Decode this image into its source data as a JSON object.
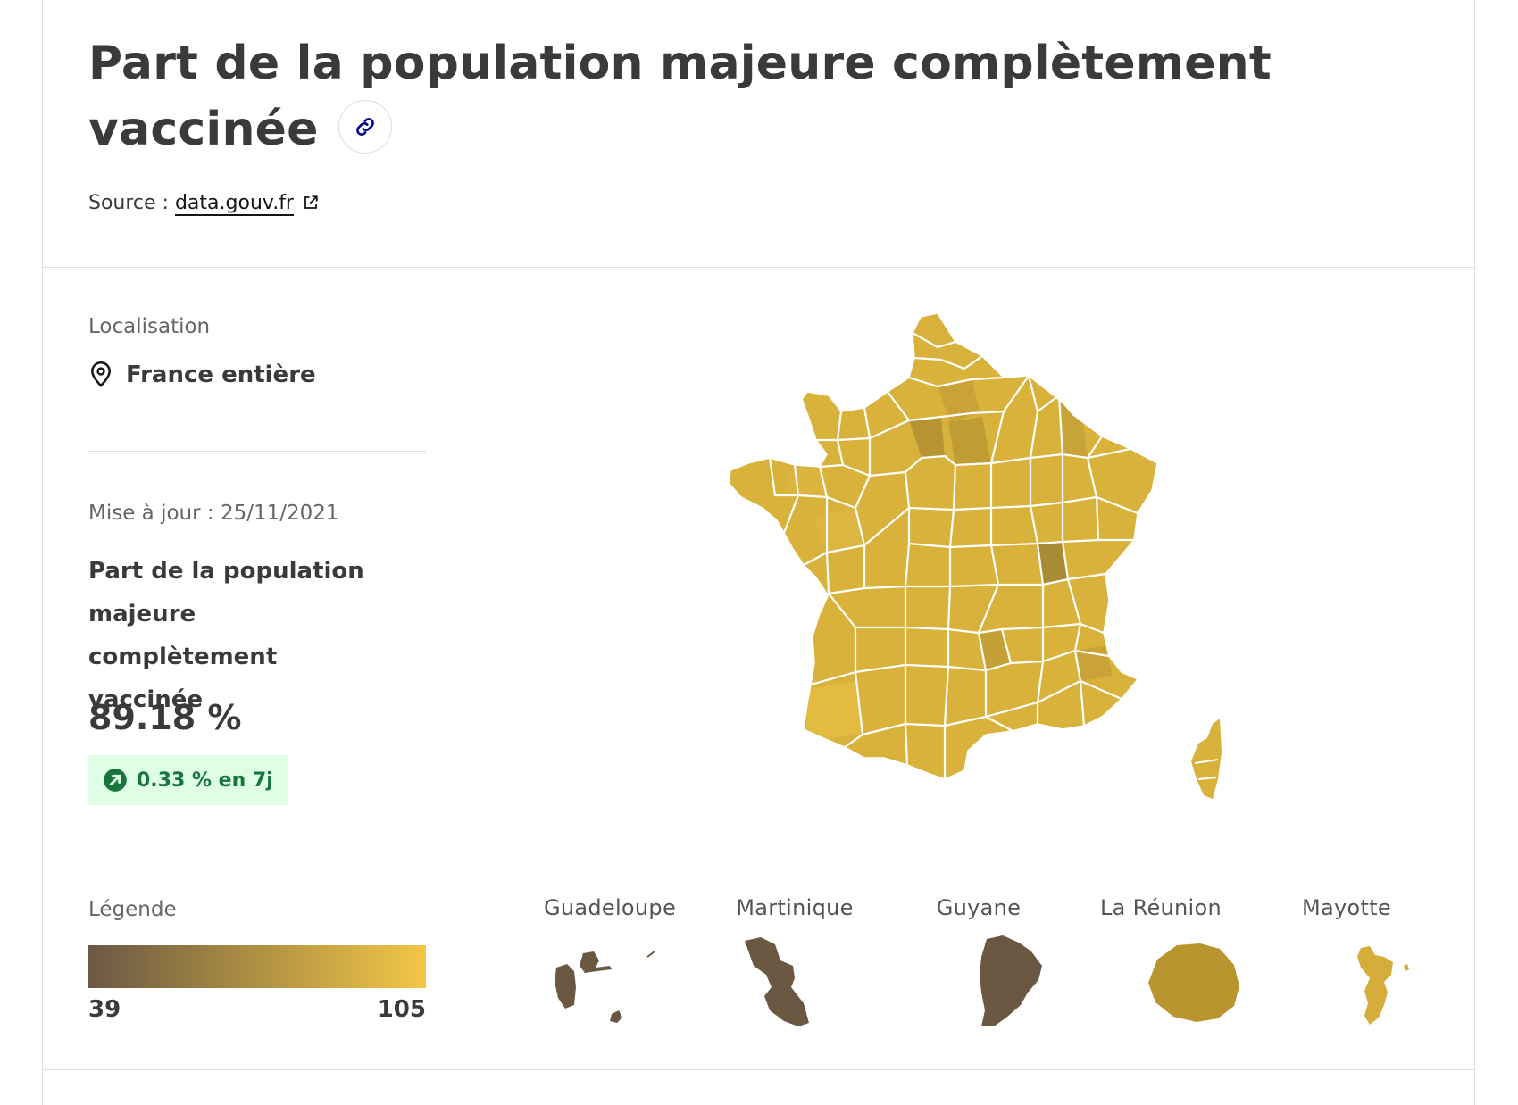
{
  "header": {
    "title": "Part de la population majeure complètement vaccinée",
    "source_prefix": "Source : ",
    "source_link": "data.gouv.fr"
  },
  "location": {
    "label": "Localisation",
    "value": "France entière"
  },
  "indicator": {
    "update": "Mise à jour : 25/11/2021",
    "name": "Part de la population majeure complètement vaccinée",
    "value": "89.18 %",
    "trend": "0.33 % en 7j",
    "trend_direction": "up"
  },
  "legend": {
    "label": "Légende",
    "min": "39",
    "max": "105",
    "color_min": "#6b5843",
    "color_max": "#f2c744"
  },
  "overseas": [
    {
      "name": "Guadeloupe",
      "color": "#6b5843"
    },
    {
      "name": "Martinique",
      "color": "#6b5843"
    },
    {
      "name": "Guyane",
      "color": "#6b5843"
    },
    {
      "name": "La Réunion",
      "color": "#b8952f"
    },
    {
      "name": "Mayotte",
      "color": "#d6ad3b"
    }
  ],
  "map_colors": {
    "base": "#d9b23c",
    "border": "#ffffff",
    "dark": "#b7912f"
  },
  "icons": [
    "link-icon",
    "external-link-icon",
    "location-pin-icon",
    "trend-up-arrow-icon"
  ]
}
